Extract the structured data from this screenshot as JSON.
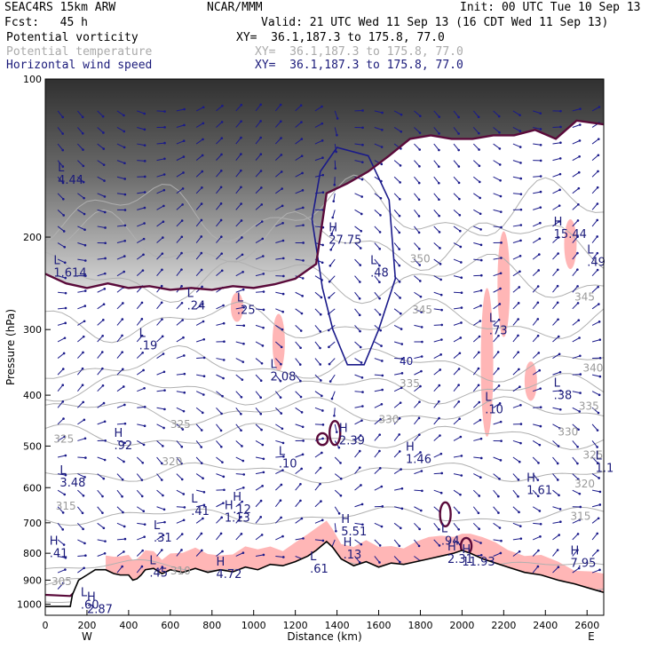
{
  "header": {
    "model": "SEAC4RS 15km ARW",
    "org": "NCAR/MMM",
    "init": "Init: 00 UTC Tue 10 Sep 13",
    "fcst": "Fcst:   45 h",
    "valid": "Valid: 21 UTC Wed 11 Sep 13 (16 CDT Wed 11 Sep 13)",
    "legend": [
      {
        "label": "Potential vorticity",
        "xy": "XY=  36.1,187.3 to 175.8, 77.0",
        "color": "#000000"
      },
      {
        "label": "Potential temperature",
        "xy": "XY=  36.1,187.3 to 175.8, 77.0",
        "color": "#aaaaaa"
      },
      {
        "label": "Horizontal wind speed",
        "xy": "XY=  36.1,187.3 to 175.8, 77.0",
        "color": "#1a1a7a"
      }
    ]
  },
  "chart_data": {
    "type": "cross-section",
    "xlabel": "Distance (km)",
    "ylabel": "Pressure (hPa)",
    "x_ticks": [
      0,
      200,
      400,
      600,
      800,
      1000,
      1200,
      1400,
      1600,
      1800,
      2000,
      2200,
      2400,
      2600
    ],
    "y_ticks": [
      100,
      200,
      300,
      400,
      500,
      600,
      700,
      800,
      900,
      1000
    ],
    "xlim": [
      0,
      2680
    ],
    "ylim": [
      1050,
      100
    ],
    "y_scale": "log",
    "end_labels": {
      "left": "W",
      "right": "E"
    },
    "terrain_profile": [
      [
        0,
        1010
      ],
      [
        120,
        1010
      ],
      [
        130,
        960
      ],
      [
        160,
        900
      ],
      [
        200,
        880
      ],
      [
        240,
        860
      ],
      [
        290,
        860
      ],
      [
        330,
        875
      ],
      [
        360,
        880
      ],
      [
        400,
        880
      ],
      [
        420,
        900
      ],
      [
        440,
        895
      ],
      [
        460,
        880
      ],
      [
        480,
        860
      ],
      [
        520,
        855
      ],
      [
        560,
        875
      ],
      [
        600,
        860
      ],
      [
        660,
        870
      ],
      [
        720,
        855
      ],
      [
        780,
        870
      ],
      [
        840,
        860
      ],
      [
        900,
        868
      ],
      [
        960,
        850
      ],
      [
        1020,
        860
      ],
      [
        1080,
        840
      ],
      [
        1140,
        845
      ],
      [
        1200,
        830
      ],
      [
        1260,
        810
      ],
      [
        1300,
        790
      ],
      [
        1350,
        760
      ],
      [
        1380,
        780
      ],
      [
        1420,
        820
      ],
      [
        1480,
        845
      ],
      [
        1540,
        830
      ],
      [
        1600,
        850
      ],
      [
        1660,
        835
      ],
      [
        1720,
        840
      ],
      [
        1780,
        830
      ],
      [
        1840,
        820
      ],
      [
        1900,
        810
      ],
      [
        1960,
        800
      ],
      [
        2000,
        790
      ],
      [
        2040,
        800
      ],
      [
        2100,
        820
      ],
      [
        2160,
        835
      ],
      [
        2220,
        850
      ],
      [
        2300,
        870
      ],
      [
        2380,
        880
      ],
      [
        2460,
        900
      ],
      [
        2540,
        915
      ],
      [
        2620,
        935
      ],
      [
        2680,
        950
      ]
    ],
    "theta_contours": [
      {
        "label": "305",
        "x": 30,
        "y": 905
      },
      {
        "label": "310",
        "x": 600,
        "y": 865
      },
      {
        "label": "315",
        "x": 50,
        "y": 650
      },
      {
        "label": "315",
        "x": 2520,
        "y": 680
      },
      {
        "label": "320",
        "x": 560,
        "y": 535
      },
      {
        "label": "320",
        "x": 2540,
        "y": 590
      },
      {
        "label": "325",
        "x": 40,
        "y": 485
      },
      {
        "label": "325",
        "x": 600,
        "y": 455
      },
      {
        "label": "325",
        "x": 2580,
        "y": 520
      },
      {
        "label": "330",
        "x": 1600,
        "y": 445
      },
      {
        "label": "330",
        "x": 2460,
        "y": 470
      },
      {
        "label": "335",
        "x": 1700,
        "y": 380
      },
      {
        "label": "335",
        "x": 2560,
        "y": 420
      },
      {
        "label": "340",
        "x": 2580,
        "y": 355
      },
      {
        "label": "345",
        "x": 1760,
        "y": 275
      },
      {
        "label": "345",
        "x": 2540,
        "y": 260
      },
      {
        "label": "350",
        "x": 1750,
        "y": 220
      }
    ],
    "extrema": [
      {
        "kind": "L",
        "value": "4.44",
        "x": 60,
        "y": 150
      },
      {
        "kind": "L",
        "value": "1.614",
        "x": 40,
        "y": 225
      },
      {
        "kind": "L",
        "value": ".19",
        "x": 450,
        "y": 310
      },
      {
        "kind": "L",
        "value": ".24",
        "x": 680,
        "y": 260
      },
      {
        "kind": "L",
        "value": ".25",
        "x": 920,
        "y": 265
      },
      {
        "kind": "L",
        "value": "2.08",
        "x": 1080,
        "y": 355
      },
      {
        "kind": "H",
        "value": "27.75",
        "x": 1360,
        "y": 195
      },
      {
        "kind": "L",
        "value": ".48",
        "x": 1560,
        "y": 225
      },
      {
        "kind": "H",
        "value": "15.44",
        "x": 2440,
        "y": 190
      },
      {
        "kind": "L",
        "value": ".49",
        "x": 2600,
        "y": 215
      },
      {
        "kind": "L",
        "value": ".73",
        "x": 2130,
        "y": 290
      },
      {
        "kind": "L",
        "value": ".10",
        "x": 2110,
        "y": 410
      },
      {
        "kind": "L",
        "value": ".38",
        "x": 2440,
        "y": 385
      },
      {
        "kind": "H",
        "value": ".92",
        "x": 330,
        "y": 480
      },
      {
        "kind": "H",
        "value": "2.39",
        "x": 1410,
        "y": 470
      },
      {
        "kind": "L",
        "value": ".10",
        "x": 1120,
        "y": 520
      },
      {
        "kind": "H",
        "value": "1.46",
        "x": 1730,
        "y": 510
      },
      {
        "kind": "L",
        "value": "1.1",
        "x": 2640,
        "y": 530
      },
      {
        "kind": "L",
        "value": "3.48",
        "x": 70,
        "y": 565
      },
      {
        "kind": "H",
        "value": "1.61",
        "x": 2310,
        "y": 585
      },
      {
        "kind": "L",
        "value": ".41",
        "x": 700,
        "y": 640
      },
      {
        "kind": "H",
        "value": ".12",
        "x": 900,
        "y": 635
      },
      {
        "kind": "H",
        "value": "1.13",
        "x": 860,
        "y": 660
      },
      {
        "kind": "H",
        "value": "5.51",
        "x": 1420,
        "y": 700
      },
      {
        "kind": "L",
        "value": ".31",
        "x": 520,
        "y": 720
      },
      {
        "kind": "L",
        "value": ".94",
        "x": 1900,
        "y": 730
      },
      {
        "kind": "H",
        "value": ".13",
        "x": 1430,
        "y": 775
      },
      {
        "kind": "H",
        "value": "2.31",
        "x": 1930,
        "y": 790
      },
      {
        "kind": "H",
        "value": "11.93",
        "x": 2000,
        "y": 800
      },
      {
        "kind": "H",
        "value": ".41",
        "x": 20,
        "y": 770
      },
      {
        "kind": "H",
        "value": "7.95",
        "x": 2520,
        "y": 805
      },
      {
        "kind": "L",
        "value": ".61",
        "x": 1270,
        "y": 825
      },
      {
        "kind": "L",
        "value": ".45",
        "x": 500,
        "y": 840
      },
      {
        "kind": "H",
        "value": "4.72",
        "x": 820,
        "y": 845
      },
      {
        "kind": "L",
        "value": ".60",
        "x": 170,
        "y": 965
      },
      {
        "kind": "H",
        "value": "2.87",
        "x": 200,
        "y": 985
      }
    ],
    "wind_speed_contours": [
      {
        "label": "40",
        "x": 1700,
        "y": 345
      }
    ],
    "pv_upper_boundary": [
      [
        0,
        235
      ],
      [
        100,
        245
      ],
      [
        200,
        250
      ],
      [
        300,
        245
      ],
      [
        400,
        250
      ],
      [
        500,
        248
      ],
      [
        600,
        252
      ],
      [
        700,
        250
      ],
      [
        800,
        252
      ],
      [
        900,
        248
      ],
      [
        1000,
        250
      ],
      [
        1100,
        246
      ],
      [
        1200,
        240
      ],
      [
        1300,
        225
      ],
      [
        1350,
        165
      ],
      [
        1450,
        158
      ],
      [
        1550,
        150
      ],
      [
        1650,
        140
      ],
      [
        1750,
        130
      ],
      [
        1850,
        128
      ],
      [
        1950,
        130
      ],
      [
        2050,
        130
      ],
      [
        2150,
        128
      ],
      [
        2250,
        128
      ],
      [
        2350,
        125
      ],
      [
        2450,
        130
      ],
      [
        2550,
        120
      ],
      [
        2680,
        122
      ]
    ]
  }
}
